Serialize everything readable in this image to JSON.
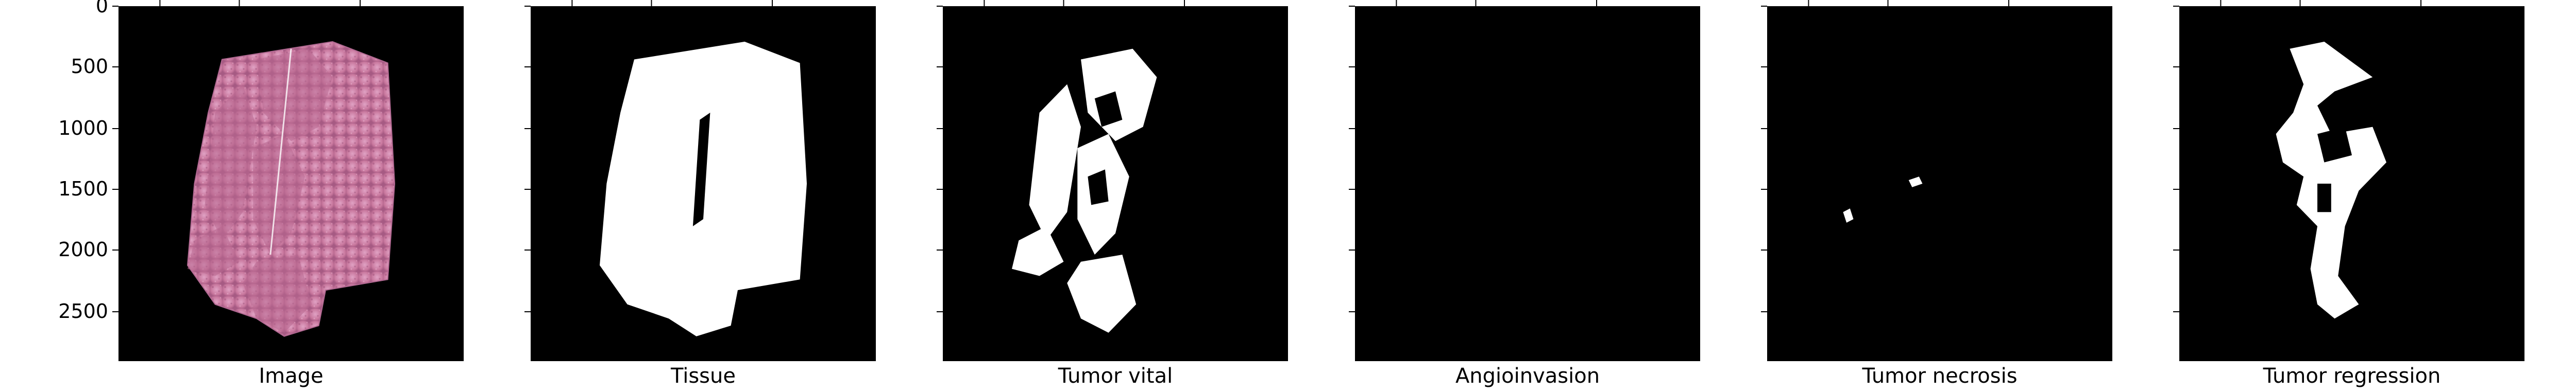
{
  "figure": {
    "yticks": [
      "0",
      "500",
      "1000",
      "1500",
      "2000",
      "2500"
    ],
    "panels": [
      {
        "title": "Image",
        "kind": "he"
      },
      {
        "title": "Tissue",
        "kind": "tissue"
      },
      {
        "title": "Tumor vital",
        "kind": "vital"
      },
      {
        "title": "Angioinvasion",
        "kind": "empty"
      },
      {
        "title": "Tumor necrosis",
        "kind": "necrosis"
      },
      {
        "title": "Tumor regression",
        "kind": "regression"
      }
    ]
  },
  "colors": {
    "background": "#000000",
    "mask": "#ffffff",
    "stain_base": "#c9789e",
    "stain_dark": "#9b4e78",
    "stain_light": "#e7b3cf"
  }
}
